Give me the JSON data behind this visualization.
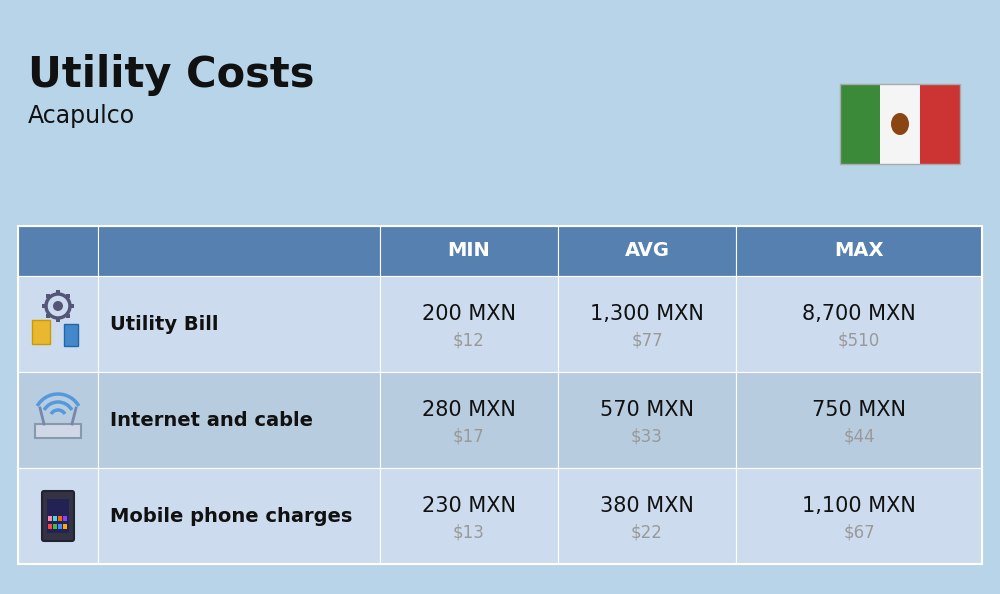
{
  "title": "Utility Costs",
  "subtitle": "Acapulco",
  "background_color": "#b8d4e8",
  "header_color": "#5580b0",
  "header_text_color": "#ffffff",
  "row_color_light": "#ccdcee",
  "row_color_dark": "#b8ccdf",
  "columns": [
    "MIN",
    "AVG",
    "MAX"
  ],
  "rows": [
    {
      "label": "Utility Bill",
      "min_mxn": "200 MXN",
      "min_usd": "$12",
      "avg_mxn": "1,300 MXN",
      "avg_usd": "$77",
      "max_mxn": "8,700 MXN",
      "max_usd": "$510",
      "icon": "utility"
    },
    {
      "label": "Internet and cable",
      "min_mxn": "280 MXN",
      "min_usd": "$17",
      "avg_mxn": "570 MXN",
      "avg_usd": "$33",
      "max_mxn": "750 MXN",
      "max_usd": "$44",
      "icon": "internet"
    },
    {
      "label": "Mobile phone charges",
      "min_mxn": "230 MXN",
      "min_usd": "$13",
      "avg_mxn": "380 MXN",
      "avg_usd": "$22",
      "max_mxn": "1,100 MXN",
      "max_usd": "$67",
      "icon": "phone"
    }
  ],
  "flag_green": "#3a8a3a",
  "flag_white": "#f5f5f5",
  "flag_red": "#cc3333",
  "usd_color": "#999999",
  "title_fontsize": 30,
  "subtitle_fontsize": 17,
  "label_fontsize": 14,
  "value_fontsize": 15,
  "usd_fontsize": 12,
  "header_fontsize": 14,
  "text_color": "#111111"
}
